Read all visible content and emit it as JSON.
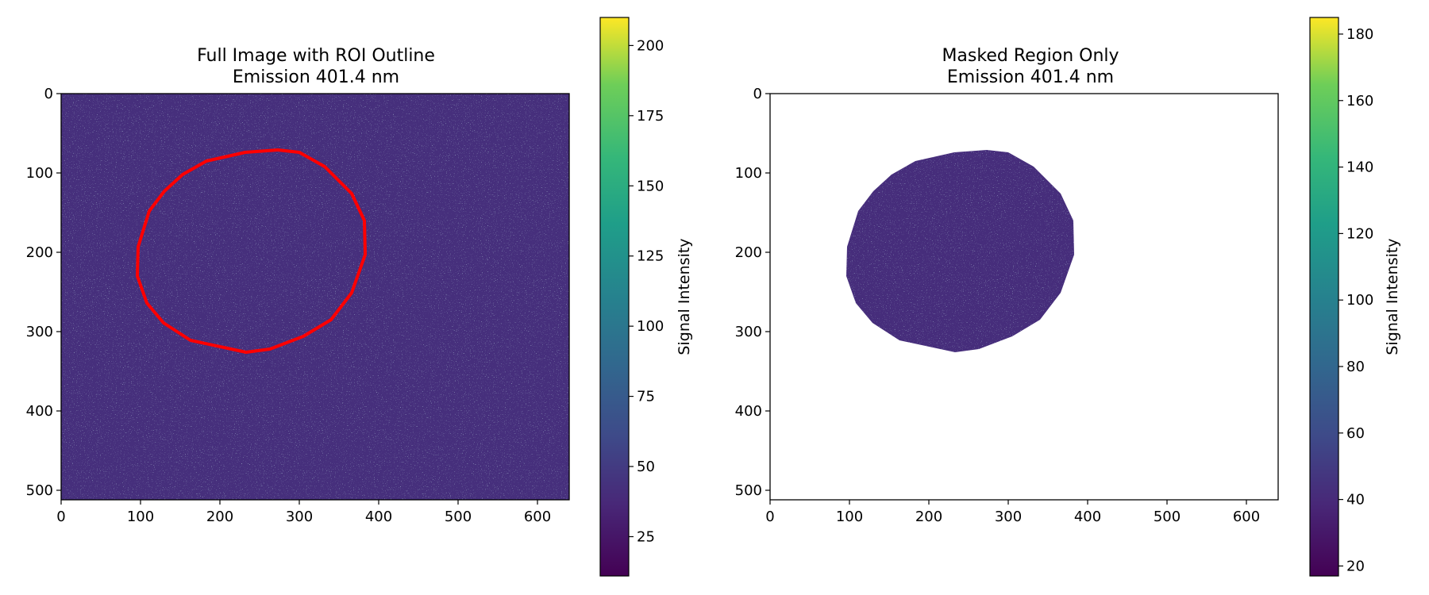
{
  "chart_data": [
    {
      "type": "heatmap",
      "title_line1": "Full Image with ROI Outline",
      "title_line2": "Emission 401.4 nm",
      "x_range": [
        0,
        640
      ],
      "y_range": [
        0,
        512
      ],
      "y_inverted": true,
      "x_ticks": [
        0,
        100,
        200,
        300,
        400,
        500,
        600
      ],
      "y_ticks": [
        0,
        100,
        200,
        300,
        400,
        500
      ],
      "colormap": "viridis",
      "background_intensity_approx": 42,
      "colorbar": {
        "label": "Signal Intensity",
        "range": [
          11,
          210
        ],
        "ticks": [
          25,
          50,
          75,
          100,
          125,
          150,
          175,
          200
        ]
      },
      "roi_outline": {
        "color": "#ff0000",
        "points": [
          [
            273,
            71
          ],
          [
            232,
            74
          ],
          [
            183,
            85
          ],
          [
            153,
            102
          ],
          [
            130,
            123
          ],
          [
            111,
            148
          ],
          [
            97,
            193
          ],
          [
            96,
            230
          ],
          [
            108,
            264
          ],
          [
            129,
            289
          ],
          [
            163,
            311
          ],
          [
            233,
            326
          ],
          [
            263,
            322
          ],
          [
            305,
            306
          ],
          [
            340,
            285
          ],
          [
            366,
            251
          ],
          [
            383,
            203
          ],
          [
            382,
            160
          ],
          [
            366,
            126
          ],
          [
            332,
            92
          ],
          [
            300,
            74
          ]
        ]
      }
    },
    {
      "type": "heatmap",
      "title_line1": "Masked Region Only",
      "title_line2": "Emission 401.4 nm",
      "x_range": [
        0,
        640
      ],
      "y_range": [
        0,
        512
      ],
      "y_inverted": true,
      "x_ticks": [
        0,
        100,
        200,
        300,
        400,
        500,
        600
      ],
      "y_ticks": [
        0,
        100,
        200,
        300,
        400,
        500
      ],
      "colormap": "viridis",
      "background_intensity_approx": 42,
      "colorbar": {
        "label": "Signal Intensity",
        "range": [
          17,
          185
        ],
        "ticks": [
          20,
          40,
          60,
          80,
          100,
          120,
          140,
          160,
          180
        ]
      }
    }
  ]
}
